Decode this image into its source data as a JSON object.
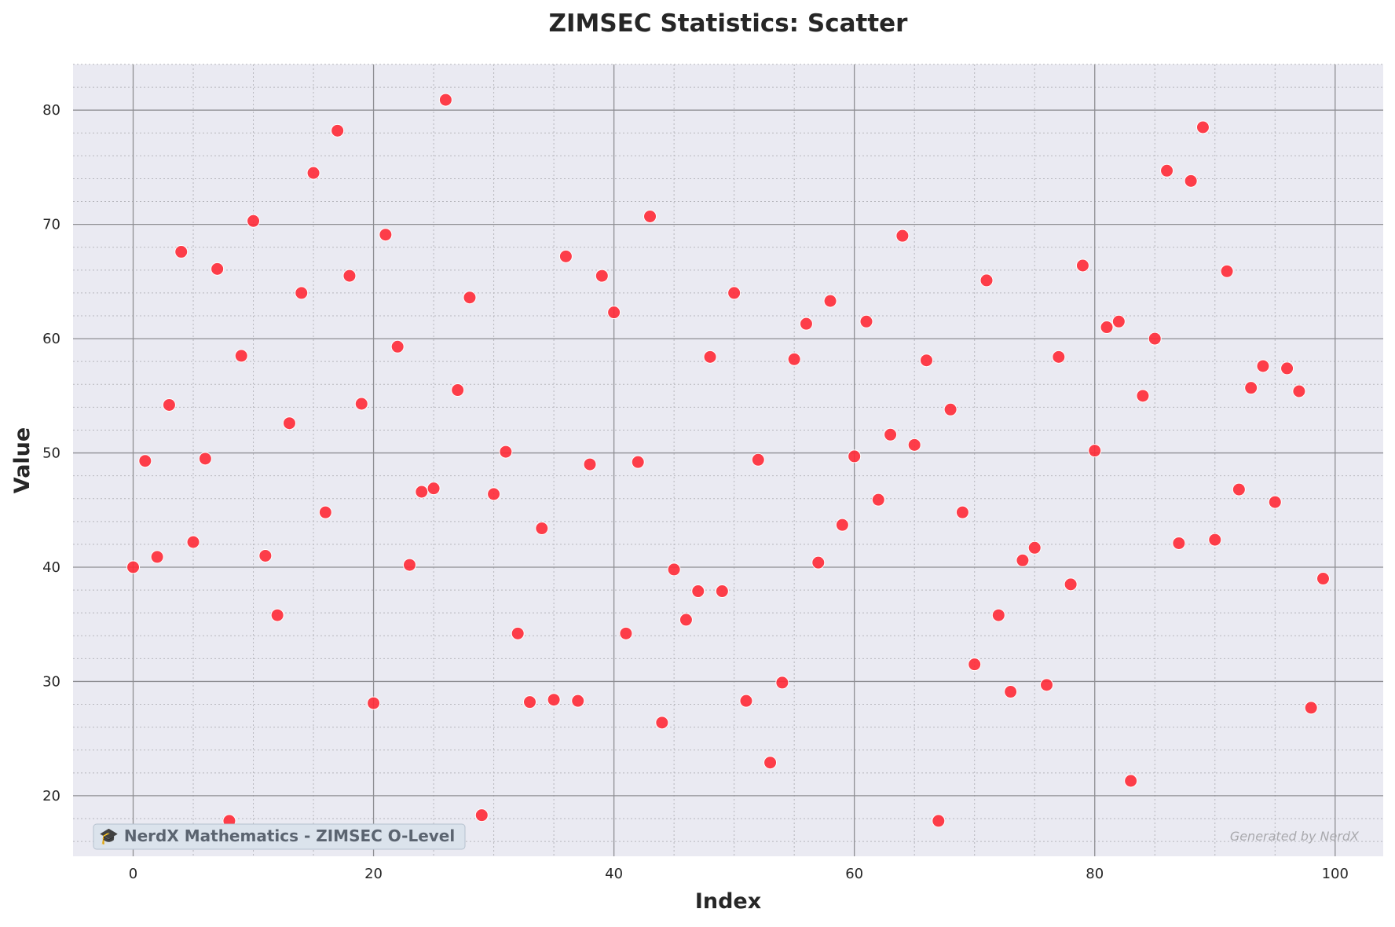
{
  "chart_data": {
    "type": "scatter",
    "title": "ZIMSEC Statistics: Scatter",
    "xlabel": "Index",
    "ylabel": "Value",
    "xlim": [
      -5,
      104
    ],
    "ylim": [
      14.7,
      84.0
    ],
    "x_ticks": [
      0,
      20,
      40,
      60,
      80,
      100
    ],
    "y_ticks": [
      20,
      30,
      40,
      50,
      60,
      70,
      80
    ],
    "grid": true,
    "minor_grid": true,
    "marker_color": "#ff2a36",
    "background_color": "#eaeaf2",
    "x": [
      0,
      1,
      2,
      3,
      4,
      5,
      6,
      7,
      8,
      9,
      10,
      11,
      12,
      13,
      14,
      15,
      16,
      17,
      18,
      19,
      20,
      21,
      22,
      23,
      24,
      25,
      26,
      27,
      28,
      29,
      30,
      31,
      32,
      33,
      34,
      35,
      36,
      37,
      38,
      39,
      40,
      41,
      42,
      43,
      44,
      45,
      46,
      47,
      48,
      49,
      50,
      51,
      52,
      53,
      54,
      55,
      56,
      57,
      58,
      59,
      60,
      61,
      62,
      63,
      64,
      65,
      66,
      67,
      68,
      69,
      70,
      71,
      72,
      73,
      74,
      75,
      76,
      77,
      78,
      79,
      80,
      81,
      82,
      83,
      84,
      85,
      86,
      87,
      88,
      89,
      90,
      91,
      92,
      93,
      94,
      95,
      96,
      97,
      98,
      99
    ],
    "y": [
      40.0,
      49.3,
      40.9,
      54.2,
      67.6,
      42.2,
      49.5,
      66.1,
      17.8,
      58.5,
      70.3,
      41.0,
      35.8,
      52.6,
      64.0,
      74.5,
      44.8,
      78.2,
      65.5,
      54.3,
      28.1,
      69.1,
      59.3,
      40.2,
      46.6,
      46.9,
      80.9,
      55.5,
      63.6,
      18.3,
      46.4,
      50.1,
      34.2,
      28.2,
      43.4,
      28.4,
      67.2,
      28.3,
      49.0,
      65.5,
      62.3,
      34.2,
      49.2,
      70.7,
      26.4,
      39.8,
      35.4,
      37.9,
      58.4,
      37.9,
      64.0,
      28.3,
      49.4,
      22.9,
      29.9,
      58.2,
      61.3,
      40.4,
      63.3,
      43.7,
      49.7,
      61.5,
      45.9,
      51.6,
      69.0,
      50.7,
      58.1,
      17.8,
      53.8,
      44.8,
      31.5,
      65.1,
      35.8,
      29.1,
      40.6,
      41.7,
      29.7,
      58.4,
      38.5,
      66.4,
      50.2,
      61.0,
      61.5,
      21.3,
      55.0,
      60.0,
      74.7,
      42.1,
      73.8,
      78.5,
      42.4,
      65.9,
      46.8,
      55.7,
      57.6,
      45.7,
      57.4,
      55.4,
      27.7,
      39.0
    ]
  },
  "watermark": {
    "text": "🎓 NerdX Mathematics - ZIMSEC O-Level",
    "icon": "graduation-cap-icon"
  },
  "credit": {
    "text": "Generated by NerdX"
  }
}
